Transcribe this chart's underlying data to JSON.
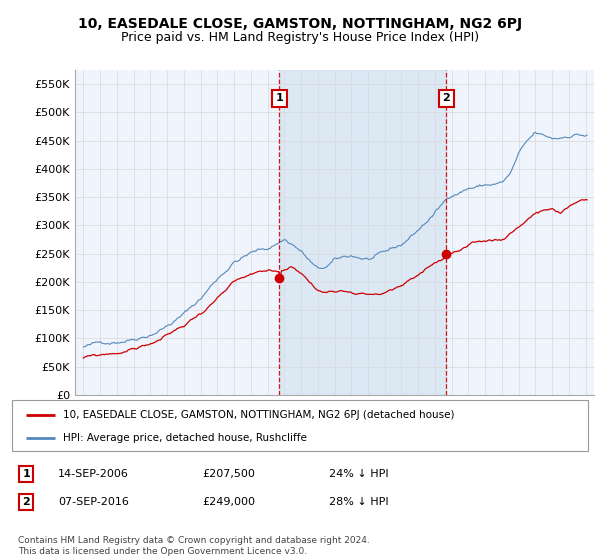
{
  "title": "10, EASEDALE CLOSE, GAMSTON, NOTTINGHAM, NG2 6PJ",
  "subtitle": "Price paid vs. HM Land Registry's House Price Index (HPI)",
  "hpi_label": "HPI: Average price, detached house, Rushcliffe",
  "property_label": "10, EASEDALE CLOSE, GAMSTON, NOTTINGHAM, NG2 6PJ (detached house)",
  "footer": "Contains HM Land Registry data © Crown copyright and database right 2024.\nThis data is licensed under the Open Government Licence v3.0.",
  "sale1_date": "14-SEP-2006",
  "sale1_price": 207500,
  "sale1_pct": "24% ↓ HPI",
  "sale2_date": "07-SEP-2016",
  "sale2_price": 249000,
  "sale2_pct": "28% ↓ HPI",
  "sale1_year": 2006.71,
  "sale2_year": 2016.68,
  "ylim_max": 575000,
  "xlim_start": 1994.5,
  "xlim_end": 2025.5,
  "plot_bg": "#f0f4fc",
  "grid_color": "#d8d8d8",
  "hpi_color": "#5588bb",
  "hpi_fill_color": "#ccddf0",
  "property_color": "#cc0000",
  "vline_color": "#cc0000",
  "title_fontsize": 10,
  "subtitle_fontsize": 9
}
